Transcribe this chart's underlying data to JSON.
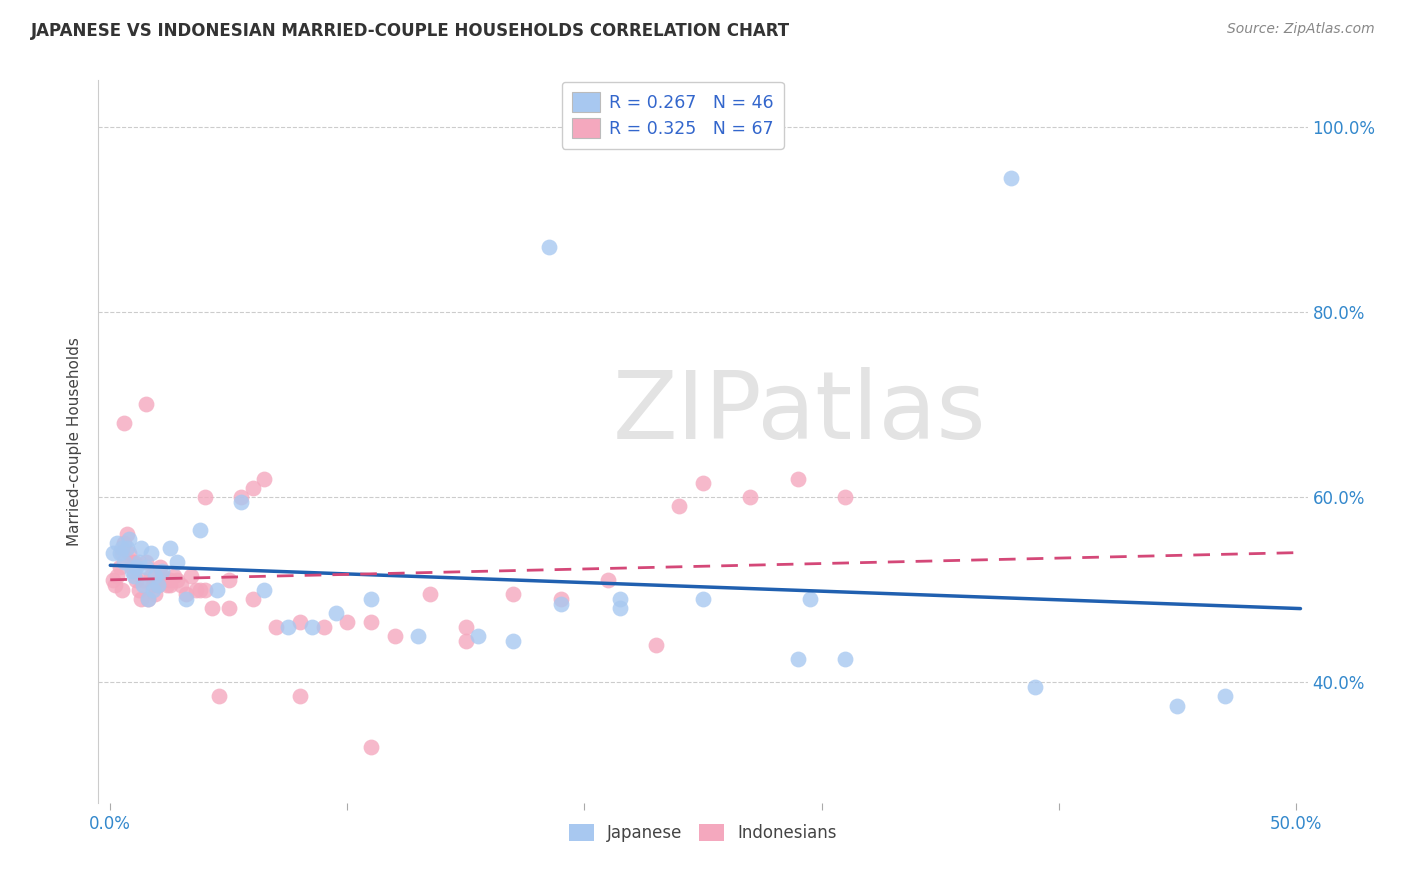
{
  "title": "JAPANESE VS INDONESIAN MARRIED-COUPLE HOUSEHOLDS CORRELATION CHART",
  "source": "Source: ZipAtlas.com",
  "ylabel_label": "Married-couple Households",
  "xlim": [
    -0.005,
    0.505
  ],
  "ylim": [
    0.27,
    1.05
  ],
  "xtick_positions": [
    0.0,
    0.1,
    0.2,
    0.3,
    0.4,
    0.5
  ],
  "xticklabels": [
    "0.0%",
    "",
    "",
    "",
    "",
    "50.0%"
  ],
  "ytick_positions": [
    0.4,
    0.6,
    0.8,
    1.0
  ],
  "yticklabels": [
    "40.0%",
    "60.0%",
    "80.0%",
    "100.0%"
  ],
  "japanese_color": "#a8c8f0",
  "indonesian_color": "#f4a8be",
  "japanese_line_color": "#2060b0",
  "indonesian_line_color": "#d44878",
  "watermark": "ZIPatlas",
  "legend_text_color": "#3366cc",
  "legend_R_japanese": "R = 0.267",
  "legend_N_japanese": "N = 46",
  "legend_R_indonesian": "R = 0.325",
  "legend_N_indonesian": "N = 67",
  "japanese_x": [
    0.001,
    0.003,
    0.004,
    0.005,
    0.006,
    0.007,
    0.008,
    0.009,
    0.01,
    0.011,
    0.012,
    0.013,
    0.014,
    0.015,
    0.016,
    0.017,
    0.018,
    0.019,
    0.02,
    0.022,
    0.025,
    0.028,
    0.032,
    0.038,
    0.045,
    0.055,
    0.065,
    0.075,
    0.085,
    0.095,
    0.11,
    0.13,
    0.155,
    0.185,
    0.215,
    0.25,
    0.295,
    0.215,
    0.17,
    0.45,
    0.39,
    0.31,
    0.29,
    0.19,
    0.38,
    0.47
  ],
  "japanese_y": [
    0.54,
    0.55,
    0.54,
    0.545,
    0.53,
    0.545,
    0.555,
    0.52,
    0.515,
    0.525,
    0.53,
    0.545,
    0.505,
    0.525,
    0.49,
    0.54,
    0.5,
    0.515,
    0.505,
    0.52,
    0.545,
    0.53,
    0.49,
    0.565,
    0.5,
    0.595,
    0.5,
    0.46,
    0.46,
    0.475,
    0.49,
    0.45,
    0.45,
    0.87,
    0.49,
    0.49,
    0.49,
    0.48,
    0.445,
    0.375,
    0.395,
    0.425,
    0.425,
    0.485,
    0.945,
    0.385
  ],
  "indonesian_x": [
    0.001,
    0.002,
    0.003,
    0.004,
    0.005,
    0.006,
    0.006,
    0.007,
    0.008,
    0.009,
    0.01,
    0.011,
    0.012,
    0.013,
    0.014,
    0.015,
    0.016,
    0.017,
    0.018,
    0.019,
    0.02,
    0.021,
    0.022,
    0.023,
    0.024,
    0.025,
    0.027,
    0.028,
    0.03,
    0.032,
    0.034,
    0.036,
    0.038,
    0.04,
    0.043,
    0.046,
    0.05,
    0.055,
    0.06,
    0.065,
    0.07,
    0.08,
    0.09,
    0.1,
    0.11,
    0.12,
    0.135,
    0.15,
    0.17,
    0.19,
    0.21,
    0.23,
    0.25,
    0.27,
    0.29,
    0.31,
    0.24,
    0.15,
    0.11,
    0.08,
    0.06,
    0.05,
    0.04,
    0.025,
    0.015,
    0.01,
    0.005
  ],
  "indonesian_y": [
    0.51,
    0.505,
    0.515,
    0.525,
    0.54,
    0.55,
    0.68,
    0.56,
    0.54,
    0.53,
    0.52,
    0.51,
    0.5,
    0.49,
    0.51,
    0.53,
    0.49,
    0.515,
    0.505,
    0.495,
    0.505,
    0.525,
    0.515,
    0.51,
    0.505,
    0.505,
    0.515,
    0.51,
    0.505,
    0.495,
    0.515,
    0.5,
    0.5,
    0.6,
    0.48,
    0.385,
    0.48,
    0.6,
    0.61,
    0.62,
    0.46,
    0.465,
    0.46,
    0.465,
    0.465,
    0.45,
    0.495,
    0.46,
    0.495,
    0.49,
    0.51,
    0.44,
    0.615,
    0.6,
    0.62,
    0.6,
    0.59,
    0.445,
    0.33,
    0.385,
    0.49,
    0.51,
    0.5,
    0.51,
    0.7,
    0.53,
    0.5
  ]
}
